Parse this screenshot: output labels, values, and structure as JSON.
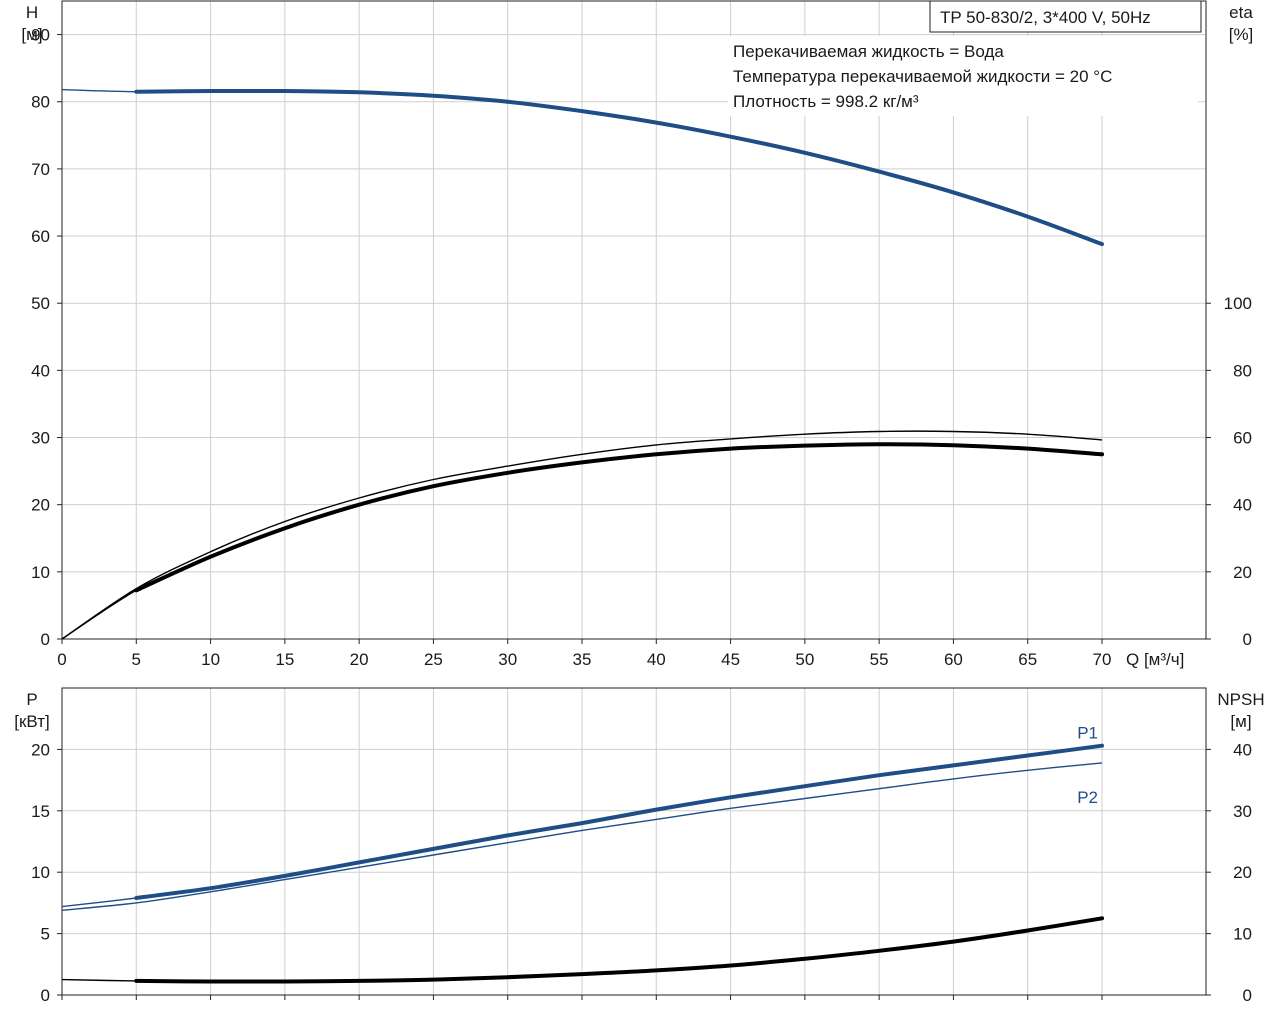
{
  "title_box": "TP 50-830/2, 3*400 V, 50Hz",
  "fluid_info": [
    "Перекачиваемая жидкость = Вода",
    "Температура перекачиваемой жидкости = 20 °C",
    "Плотность = 998.2 кг/м³"
  ],
  "colors": {
    "blue": "#1f4e87",
    "black": "#000000",
    "grid": "#cfcfcf"
  },
  "chart_data": [
    {
      "type": "line",
      "xlabel": "Q [м³/ч]",
      "ylabel_left": [
        "H",
        "[м]"
      ],
      "ylabel_right": [
        "eta",
        "[%]"
      ],
      "xlim": [
        0,
        77
      ],
      "ylim_left": [
        0,
        95
      ],
      "ylim_right": [
        0,
        190
      ],
      "x_ticks": [
        0,
        5,
        10,
        15,
        20,
        25,
        30,
        35,
        40,
        45,
        50,
        55,
        60,
        65,
        70
      ],
      "y_ticks_left": [
        0,
        10,
        20,
        30,
        40,
        50,
        60,
        70,
        80,
        90
      ],
      "y_ticks_right": [
        0,
        20,
        40,
        60,
        80,
        100
      ],
      "grid": true,
      "series": [
        {
          "axis": "left",
          "color": "#1f4e87",
          "x": [
            0,
            5,
            10,
            15,
            20,
            25,
            30,
            35,
            40,
            45,
            50,
            55,
            60,
            65,
            70
          ],
          "y": [
            81.8,
            81.5,
            81.6,
            81.6,
            81.4,
            80.9,
            80.0,
            78.6,
            76.9,
            74.8,
            72.4,
            69.6,
            66.5,
            62.9,
            58.8
          ],
          "thick_from": 5
        },
        {
          "axis": "right",
          "color": "#000000",
          "x": [
            0,
            5,
            10,
            15,
            20,
            25,
            30,
            35,
            40,
            45,
            50,
            55,
            60,
            65,
            70
          ],
          "y": [
            0,
            15,
            26,
            35,
            42,
            47.5,
            51.5,
            55,
            57.8,
            59.6,
            61,
            61.8,
            61.8,
            61,
            59.3
          ],
          "thick_from": 99
        },
        {
          "axis": "right",
          "color": "#000000",
          "x": [
            0,
            5,
            10,
            15,
            20,
            25,
            30,
            35,
            40,
            45,
            50,
            55,
            60,
            65,
            70
          ],
          "y": [
            0,
            14.5,
            24.5,
            33,
            40,
            45.5,
            49.5,
            52.6,
            55,
            56.7,
            57.6,
            58,
            57.7,
            56.7,
            55
          ],
          "thick_from": 5
        }
      ]
    },
    {
      "type": "line",
      "ylabel_left": [
        "P",
        "[кВт]"
      ],
      "ylabel_right": [
        "NPSH",
        "[м]"
      ],
      "xlim": [
        0,
        77
      ],
      "ylim_left": [
        0,
        25
      ],
      "ylim_right": [
        0,
        50
      ],
      "x_ticks": [
        0,
        5,
        10,
        15,
        20,
        25,
        30,
        35,
        40,
        45,
        50,
        55,
        60,
        65,
        70
      ],
      "y_ticks_left": [
        0,
        5,
        10,
        15,
        20
      ],
      "y_ticks_right": [
        0,
        10,
        20,
        30,
        40
      ],
      "grid": true,
      "series": [
        {
          "name": "P1",
          "axis": "left",
          "color": "#1f4e87",
          "x": [
            0,
            5,
            10,
            15,
            20,
            25,
            30,
            35,
            40,
            45,
            50,
            55,
            60,
            65,
            70
          ],
          "y": [
            7.2,
            7.9,
            8.7,
            9.7,
            10.8,
            11.9,
            13.0,
            14.0,
            15.1,
            16.1,
            17.0,
            17.9,
            18.7,
            19.5,
            20.3
          ],
          "thick_from": 5
        },
        {
          "name": "P2",
          "axis": "left",
          "color": "#1f4e87",
          "x": [
            0,
            5,
            10,
            15,
            20,
            25,
            30,
            35,
            40,
            45,
            50,
            55,
            60,
            65,
            70
          ],
          "y": [
            6.9,
            7.5,
            8.4,
            9.4,
            10.4,
            11.4,
            12.4,
            13.4,
            14.3,
            15.2,
            16.0,
            16.8,
            17.6,
            18.3,
            18.9
          ],
          "thick_from": 99
        },
        {
          "axis": "right",
          "color": "#000000",
          "x": [
            0,
            5,
            10,
            15,
            20,
            25,
            30,
            35,
            40,
            45,
            50,
            55,
            60,
            65,
            70
          ],
          "y": [
            2.5,
            2.3,
            2.2,
            2.2,
            2.3,
            2.5,
            2.9,
            3.4,
            4.0,
            4.8,
            5.9,
            7.2,
            8.7,
            10.5,
            12.5
          ],
          "thick_from": 5
        }
      ]
    }
  ]
}
